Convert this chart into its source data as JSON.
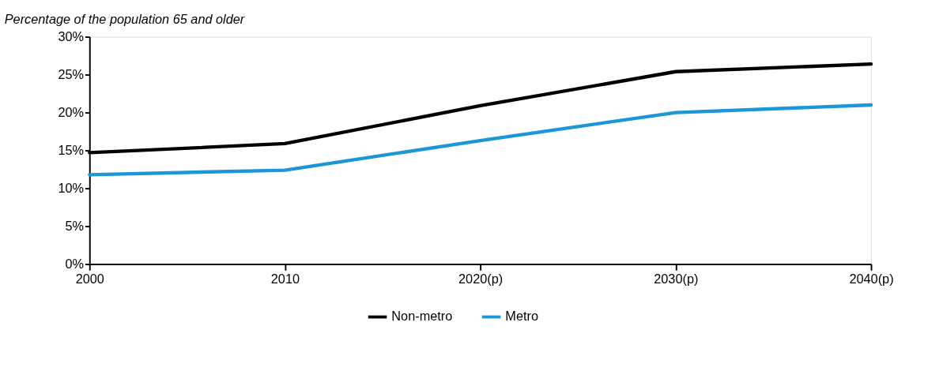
{
  "chart_data": {
    "type": "line",
    "title": "Percentage of the population 65 and older",
    "categories": [
      "2000",
      "2010",
      "2020(p)",
      "2030(p)",
      "2040(p)"
    ],
    "series": [
      {
        "name": "Non-metro",
        "color": "#000000",
        "values": [
          14.7,
          15.9,
          20.9,
          25.4,
          26.4
        ]
      },
      {
        "name": "Metro",
        "color": "#1b96d6",
        "values": [
          11.8,
          12.4,
          16.3,
          20.0,
          21.0
        ]
      }
    ],
    "ylim": [
      0,
      30
    ],
    "yticks": [
      {
        "value": 0,
        "label": "0%"
      },
      {
        "value": 5,
        "label": "5%"
      },
      {
        "value": 10,
        "label": "10%"
      },
      {
        "value": 15,
        "label": "15%"
      },
      {
        "value": 20,
        "label": "20%"
      },
      {
        "value": 25,
        "label": "25%"
      },
      {
        "value": 30,
        "label": "30%"
      }
    ],
    "grid": false,
    "legend": "bottom",
    "marker": "none",
    "line_style": "solid"
  }
}
